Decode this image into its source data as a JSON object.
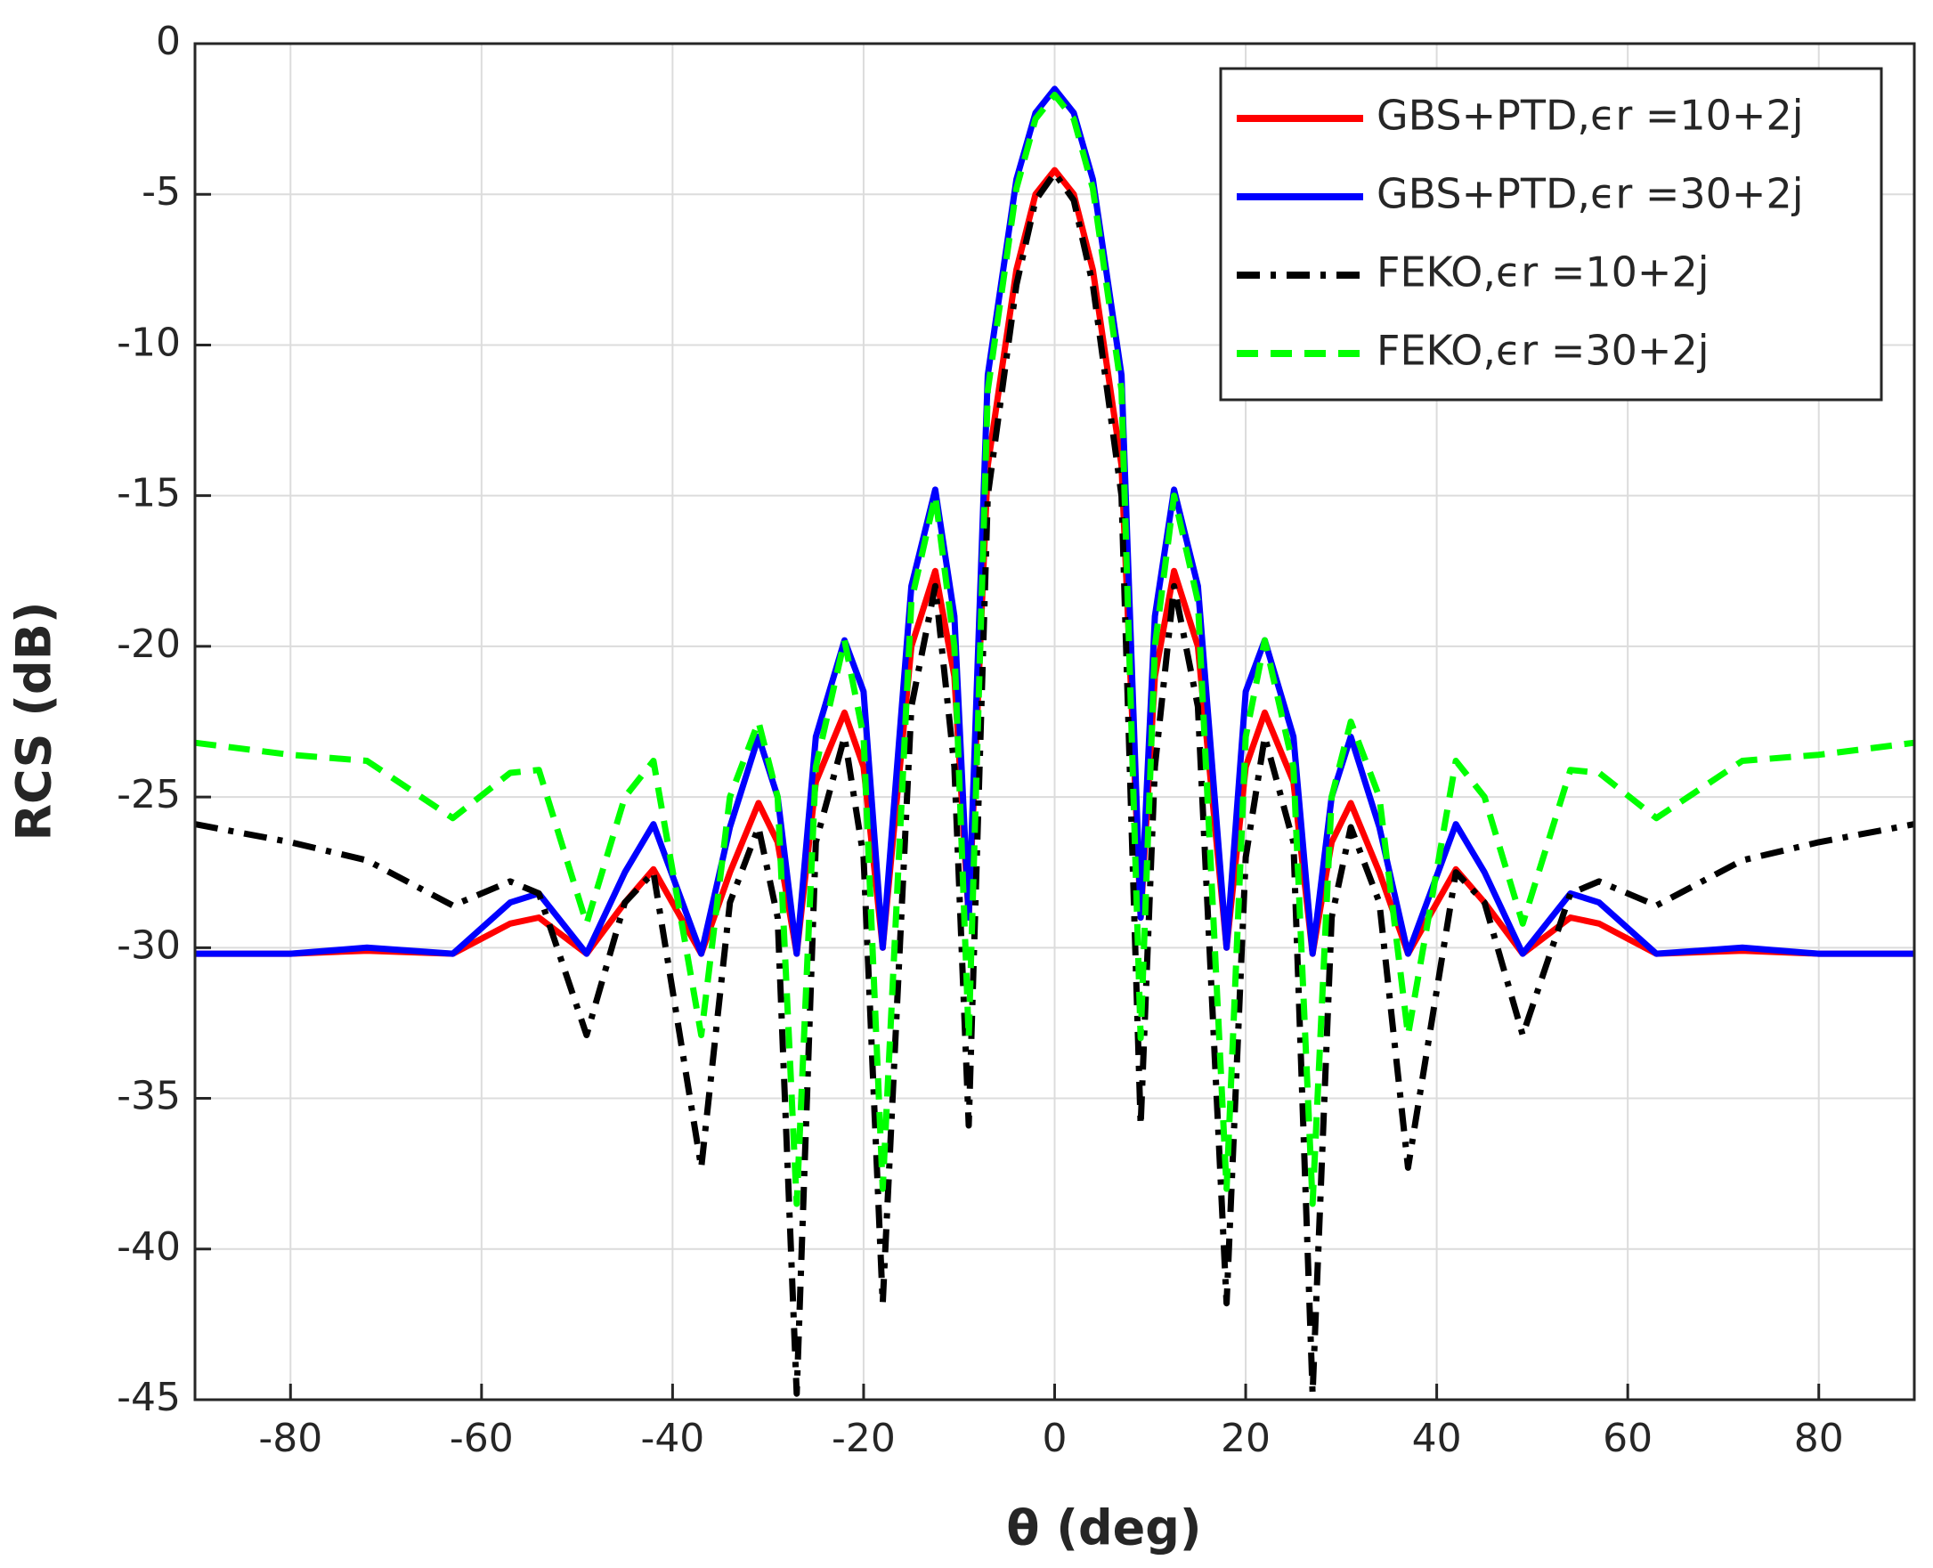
{
  "chart_data": {
    "type": "line",
    "xlabel": "θ (deg)",
    "ylabel": "RCS (dB)",
    "x": [
      -90,
      -80,
      -72,
      -63,
      -57,
      -54,
      -49,
      -45,
      -42,
      -37,
      -34,
      -31,
      -29,
      -27,
      -25,
      -22,
      -20,
      -18,
      -15,
      -12.5,
      -10.5,
      -9,
      -7,
      -4,
      -2,
      0,
      2,
      4,
      7,
      9,
      10.5,
      12.5,
      15,
      18,
      20,
      22,
      25,
      27,
      29,
      31,
      34,
      37,
      42,
      45,
      49,
      54,
      57,
      63,
      72,
      80,
      90
    ],
    "series": [
      {
        "name": "GBS+PTD,ϵr =10+2j",
        "color": "#ff0000",
        "linestyle": "solid",
        "values": [
          -30.2,
          -30.2,
          -30.1,
          -30.2,
          -29.2,
          -29.0,
          -30.2,
          -28.5,
          -27.4,
          -30.2,
          -27.5,
          -25.2,
          -26.5,
          -30.2,
          -24.5,
          -22.2,
          -24,
          -30,
          -20,
          -17.5,
          -21,
          -29,
          -14,
          -7.5,
          -5,
          -4.2,
          -5,
          -7.5,
          -14,
          -29,
          -21,
          -17.5,
          -20,
          -30,
          -24,
          -22.2,
          -24.5,
          -30.2,
          -26.5,
          -25.2,
          -27.5,
          -30.2,
          -27.4,
          -28.5,
          -30.2,
          -29.0,
          -29.2,
          -30.2,
          -30.1,
          -30.2,
          -30.2
        ]
      },
      {
        "name": "GBS+PTD,ϵr =30+2j",
        "color": "#0000ff",
        "linestyle": "solid",
        "values": [
          -30.2,
          -30.2,
          -30.0,
          -30.2,
          -28.5,
          -28.2,
          -30.2,
          -27.5,
          -25.9,
          -30.2,
          -26,
          -23,
          -25,
          -30.2,
          -23,
          -19.8,
          -21.5,
          -30,
          -18,
          -14.8,
          -19,
          -29,
          -11,
          -4.5,
          -2.3,
          -1.5,
          -2.3,
          -4.5,
          -11,
          -29,
          -19,
          -14.8,
          -18,
          -30,
          -21.5,
          -19.8,
          -23,
          -30.2,
          -25,
          -23,
          -26,
          -30.2,
          -25.9,
          -27.5,
          -30.2,
          -28.2,
          -28.5,
          -30.2,
          -30.0,
          -30.2,
          -30.2
        ]
      },
      {
        "name": "FEKO,ϵr =10+2j",
        "color": "#000000",
        "linestyle": "dashdot",
        "values": [
          -25.9,
          -26.5,
          -27.1,
          -28.6,
          -27.8,
          -28.2,
          -32.9,
          -28.5,
          -27.5,
          -37.3,
          -28.5,
          -26,
          -29,
          -44.8,
          -26.5,
          -23,
          -27,
          -41.8,
          -22,
          -18,
          -24,
          -35.9,
          -15,
          -8,
          -5.2,
          -4.3,
          -5.2,
          -8,
          -15,
          -35.9,
          -24,
          -18,
          -22,
          -41.8,
          -27,
          -23,
          -26.5,
          -44.8,
          -29,
          -26,
          -28.5,
          -37.3,
          -27.5,
          -28.5,
          -32.9,
          -28.2,
          -27.8,
          -28.6,
          -27.1,
          -26.5,
          -25.9
        ]
      },
      {
        "name": "FEKO,ϵr =30+2j",
        "color": "#00ff00",
        "linestyle": "dashed",
        "values": [
          -23.2,
          -23.6,
          -23.8,
          -25.7,
          -24.2,
          -24.1,
          -29.2,
          -25,
          -23.8,
          -32.9,
          -25,
          -22.5,
          -25,
          -38.5,
          -24,
          -19.8,
          -23,
          -38,
          -18.5,
          -15,
          -20,
          -33,
          -11.5,
          -4.8,
          -2.5,
          -1.7,
          -2.5,
          -4.8,
          -11.5,
          -33,
          -20,
          -15,
          -18.5,
          -38,
          -23,
          -19.8,
          -24,
          -38.5,
          -25,
          -22.5,
          -25,
          -32.9,
          -23.8,
          -25,
          -29.2,
          -24.1,
          -24.2,
          -25.7,
          -23.8,
          -23.6,
          -23.2
        ]
      }
    ],
    "xlim": [
      -90,
      90
    ],
    "xticks": [
      -80,
      -60,
      -40,
      -20,
      0,
      20,
      40,
      60,
      80
    ],
    "ylim": [
      -45,
      0
    ],
    "yticks": [
      0,
      -5,
      -10,
      -15,
      -20,
      -25,
      -30,
      -35,
      -40,
      -45
    ],
    "grid": true,
    "legend": "top-right"
  }
}
